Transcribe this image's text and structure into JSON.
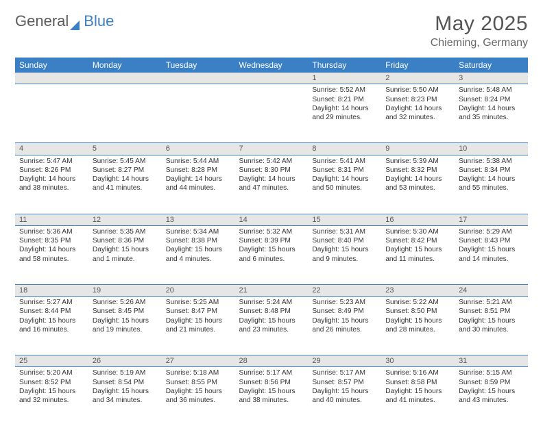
{
  "logo": {
    "text_gray": "General",
    "text_blue": "Blue"
  },
  "title": "May 2025",
  "location": "Chieming, Germany",
  "colors": {
    "header_bg": "#3b7fc4",
    "header_text": "#ffffff",
    "daynum_bg": "#e6e6e6",
    "rule": "#3b7fc4",
    "body_text": "#333333",
    "page_bg": "#ffffff"
  },
  "weekdays": [
    "Sunday",
    "Monday",
    "Tuesday",
    "Wednesday",
    "Thursday",
    "Friday",
    "Saturday"
  ],
  "weeks": [
    [
      null,
      null,
      null,
      null,
      {
        "n": "1",
        "sunrise": "Sunrise: 5:52 AM",
        "sunset": "Sunset: 8:21 PM",
        "daylight": "Daylight: 14 hours and 29 minutes."
      },
      {
        "n": "2",
        "sunrise": "Sunrise: 5:50 AM",
        "sunset": "Sunset: 8:23 PM",
        "daylight": "Daylight: 14 hours and 32 minutes."
      },
      {
        "n": "3",
        "sunrise": "Sunrise: 5:48 AM",
        "sunset": "Sunset: 8:24 PM",
        "daylight": "Daylight: 14 hours and 35 minutes."
      }
    ],
    [
      {
        "n": "4",
        "sunrise": "Sunrise: 5:47 AM",
        "sunset": "Sunset: 8:26 PM",
        "daylight": "Daylight: 14 hours and 38 minutes."
      },
      {
        "n": "5",
        "sunrise": "Sunrise: 5:45 AM",
        "sunset": "Sunset: 8:27 PM",
        "daylight": "Daylight: 14 hours and 41 minutes."
      },
      {
        "n": "6",
        "sunrise": "Sunrise: 5:44 AM",
        "sunset": "Sunset: 8:28 PM",
        "daylight": "Daylight: 14 hours and 44 minutes."
      },
      {
        "n": "7",
        "sunrise": "Sunrise: 5:42 AM",
        "sunset": "Sunset: 8:30 PM",
        "daylight": "Daylight: 14 hours and 47 minutes."
      },
      {
        "n": "8",
        "sunrise": "Sunrise: 5:41 AM",
        "sunset": "Sunset: 8:31 PM",
        "daylight": "Daylight: 14 hours and 50 minutes."
      },
      {
        "n": "9",
        "sunrise": "Sunrise: 5:39 AM",
        "sunset": "Sunset: 8:32 PM",
        "daylight": "Daylight: 14 hours and 53 minutes."
      },
      {
        "n": "10",
        "sunrise": "Sunrise: 5:38 AM",
        "sunset": "Sunset: 8:34 PM",
        "daylight": "Daylight: 14 hours and 55 minutes."
      }
    ],
    [
      {
        "n": "11",
        "sunrise": "Sunrise: 5:36 AM",
        "sunset": "Sunset: 8:35 PM",
        "daylight": "Daylight: 14 hours and 58 minutes."
      },
      {
        "n": "12",
        "sunrise": "Sunrise: 5:35 AM",
        "sunset": "Sunset: 8:36 PM",
        "daylight": "Daylight: 15 hours and 1 minute."
      },
      {
        "n": "13",
        "sunrise": "Sunrise: 5:34 AM",
        "sunset": "Sunset: 8:38 PM",
        "daylight": "Daylight: 15 hours and 4 minutes."
      },
      {
        "n": "14",
        "sunrise": "Sunrise: 5:32 AM",
        "sunset": "Sunset: 8:39 PM",
        "daylight": "Daylight: 15 hours and 6 minutes."
      },
      {
        "n": "15",
        "sunrise": "Sunrise: 5:31 AM",
        "sunset": "Sunset: 8:40 PM",
        "daylight": "Daylight: 15 hours and 9 minutes."
      },
      {
        "n": "16",
        "sunrise": "Sunrise: 5:30 AM",
        "sunset": "Sunset: 8:42 PM",
        "daylight": "Daylight: 15 hours and 11 minutes."
      },
      {
        "n": "17",
        "sunrise": "Sunrise: 5:29 AM",
        "sunset": "Sunset: 8:43 PM",
        "daylight": "Daylight: 15 hours and 14 minutes."
      }
    ],
    [
      {
        "n": "18",
        "sunrise": "Sunrise: 5:27 AM",
        "sunset": "Sunset: 8:44 PM",
        "daylight": "Daylight: 15 hours and 16 minutes."
      },
      {
        "n": "19",
        "sunrise": "Sunrise: 5:26 AM",
        "sunset": "Sunset: 8:45 PM",
        "daylight": "Daylight: 15 hours and 19 minutes."
      },
      {
        "n": "20",
        "sunrise": "Sunrise: 5:25 AM",
        "sunset": "Sunset: 8:47 PM",
        "daylight": "Daylight: 15 hours and 21 minutes."
      },
      {
        "n": "21",
        "sunrise": "Sunrise: 5:24 AM",
        "sunset": "Sunset: 8:48 PM",
        "daylight": "Daylight: 15 hours and 23 minutes."
      },
      {
        "n": "22",
        "sunrise": "Sunrise: 5:23 AM",
        "sunset": "Sunset: 8:49 PM",
        "daylight": "Daylight: 15 hours and 26 minutes."
      },
      {
        "n": "23",
        "sunrise": "Sunrise: 5:22 AM",
        "sunset": "Sunset: 8:50 PM",
        "daylight": "Daylight: 15 hours and 28 minutes."
      },
      {
        "n": "24",
        "sunrise": "Sunrise: 5:21 AM",
        "sunset": "Sunset: 8:51 PM",
        "daylight": "Daylight: 15 hours and 30 minutes."
      }
    ],
    [
      {
        "n": "25",
        "sunrise": "Sunrise: 5:20 AM",
        "sunset": "Sunset: 8:52 PM",
        "daylight": "Daylight: 15 hours and 32 minutes."
      },
      {
        "n": "26",
        "sunrise": "Sunrise: 5:19 AM",
        "sunset": "Sunset: 8:54 PM",
        "daylight": "Daylight: 15 hours and 34 minutes."
      },
      {
        "n": "27",
        "sunrise": "Sunrise: 5:18 AM",
        "sunset": "Sunset: 8:55 PM",
        "daylight": "Daylight: 15 hours and 36 minutes."
      },
      {
        "n": "28",
        "sunrise": "Sunrise: 5:17 AM",
        "sunset": "Sunset: 8:56 PM",
        "daylight": "Daylight: 15 hours and 38 minutes."
      },
      {
        "n": "29",
        "sunrise": "Sunrise: 5:17 AM",
        "sunset": "Sunset: 8:57 PM",
        "daylight": "Daylight: 15 hours and 40 minutes."
      },
      {
        "n": "30",
        "sunrise": "Sunrise: 5:16 AM",
        "sunset": "Sunset: 8:58 PM",
        "daylight": "Daylight: 15 hours and 41 minutes."
      },
      {
        "n": "31",
        "sunrise": "Sunrise: 5:15 AM",
        "sunset": "Sunset: 8:59 PM",
        "daylight": "Daylight: 15 hours and 43 minutes."
      }
    ]
  ]
}
